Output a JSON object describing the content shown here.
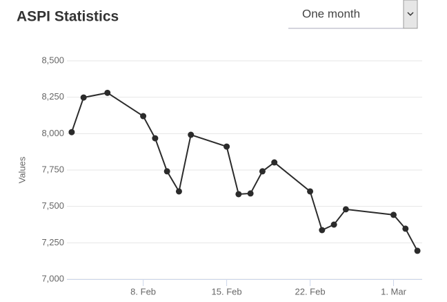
{
  "period_select": "One month",
  "chart_data": {
    "type": "line",
    "title": "ASPI Statistics",
    "y_label": "Values",
    "x": [
      2,
      3,
      5,
      8,
      9,
      10,
      11,
      12,
      15,
      16,
      17,
      18,
      19,
      22,
      23,
      24,
      25,
      29,
      30,
      31
    ],
    "series": [
      {
        "name": "ASPI",
        "color": "#2b2b2b",
        "values": [
          8010,
          8248,
          8280,
          8120,
          7968,
          7741,
          7603,
          7992,
          7911,
          7584,
          7589,
          7741,
          7802,
          7603,
          7337,
          7375,
          7480,
          7442,
          7347,
          7195
        ]
      }
    ],
    "xlim": [
      1.6,
      31.4
    ],
    "xticks": [
      {
        "value": 8,
        "label": "8. Feb"
      },
      {
        "value": 15,
        "label": "15. Feb"
      },
      {
        "value": 22,
        "label": "22. Feb"
      },
      {
        "value": 29,
        "label": "1. Mar"
      }
    ],
    "ylim": [
      7000,
      8500
    ],
    "yticks": [
      {
        "value": 7000,
        "label": "7,000"
      },
      {
        "value": 7250,
        "label": "7,250"
      },
      {
        "value": 7500,
        "label": "7,500"
      },
      {
        "value": 7750,
        "label": "7,750"
      },
      {
        "value": 8000,
        "label": "8,000"
      },
      {
        "value": 8250,
        "label": "8,250"
      },
      {
        "value": 8500,
        "label": "8,500"
      }
    ],
    "grid": true
  }
}
